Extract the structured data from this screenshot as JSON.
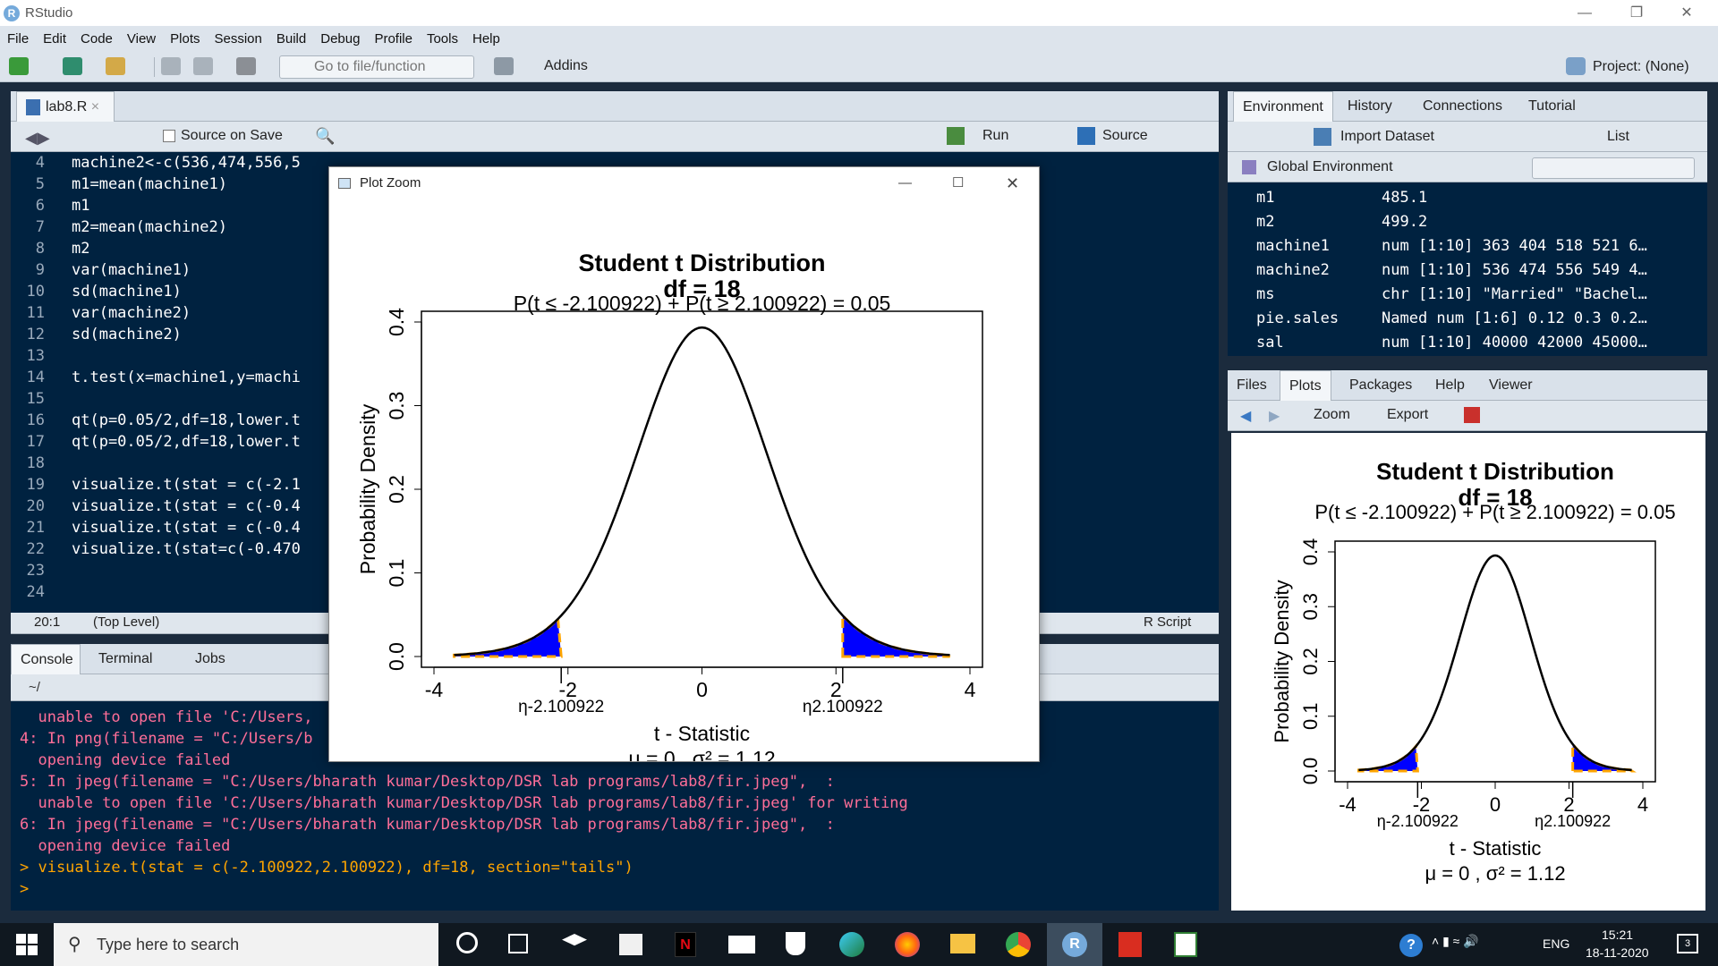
{
  "window": {
    "title": "RStudio"
  },
  "menu": [
    "File",
    "Edit",
    "Code",
    "View",
    "Plots",
    "Session",
    "Build",
    "Debug",
    "Profile",
    "Tools",
    "Help"
  ],
  "toolbar": {
    "goto_placeholder": "Go to file/function",
    "addins": "Addins",
    "project": "Project: (None)"
  },
  "editor": {
    "tab": "lab8.R",
    "source_on_save": "Source on Save",
    "run": "Run",
    "source": "Source",
    "status_pos": "20:1",
    "status_scope": "(Top Level)",
    "status_type": "R Script",
    "lines": [
      {
        "n": "4",
        "t": "machine2<-c(536,474,556,5"
      },
      {
        "n": "5",
        "t": "m1=mean(machine1)"
      },
      {
        "n": "6",
        "t": "m1"
      },
      {
        "n": "7",
        "t": "m2=mean(machine2)"
      },
      {
        "n": "8",
        "t": "m2"
      },
      {
        "n": "9",
        "t": "var(machine1)"
      },
      {
        "n": "10",
        "t": "sd(machine1)"
      },
      {
        "n": "11",
        "t": "var(machine2)"
      },
      {
        "n": "12",
        "t": "sd(machine2)"
      },
      {
        "n": "13",
        "t": ""
      },
      {
        "n": "14",
        "t": "t.test(x=machine1,y=machi"
      },
      {
        "n": "15",
        "t": ""
      },
      {
        "n": "16",
        "t": "qt(p=0.05/2,df=18,lower.t"
      },
      {
        "n": "17",
        "t": "qt(p=0.05/2,df=18,lower.t"
      },
      {
        "n": "18",
        "t": ""
      },
      {
        "n": "19",
        "t": "visualize.t(stat = c(-2.1"
      },
      {
        "n": "20",
        "t": "visualize.t(stat = c(-0.4"
      },
      {
        "n": "21",
        "t": "visualize.t(stat = c(-0.4"
      },
      {
        "n": "22",
        "t": "visualize.t(stat=c(-0.470"
      },
      {
        "n": "23",
        "t": ""
      },
      {
        "n": "24",
        "t": ""
      }
    ]
  },
  "console": {
    "tabs": [
      "Console",
      "Terminal",
      "Jobs"
    ],
    "path": "~/",
    "lines": [
      {
        "t": "  unable to open file 'C:/Users,",
        "c": "hl"
      },
      {
        "t": "4: In png(filename = \"C:/Users/b",
        "c": "hl"
      },
      {
        "t": "  opening device failed",
        "c": "hl"
      },
      {
        "t": "5: In jpeg(filename = \"C:/Users/bharath kumar/Desktop/DSR lab programs/lab8/fir.jpeg\",  :",
        "c": "hl"
      },
      {
        "t": "  unable to open file 'C:/Users/bharath kumar/Desktop/DSR lab programs/lab8/fir.jpeg' for writing",
        "c": "hl"
      },
      {
        "t": "6: In jpeg(filename = \"C:/Users/bharath kumar/Desktop/DSR lab programs/lab8/fir.jpeg\",  :",
        "c": "hl"
      },
      {
        "t": "  opening device failed",
        "c": "hl"
      },
      {
        "t": "> visualize.t(stat = c(-2.100922,2.100922), df=18, section=\"tails\")",
        "c": "stx"
      },
      {
        "t": "> ",
        "c": "stx"
      }
    ]
  },
  "environment": {
    "tabs": [
      "Environment",
      "History",
      "Connections",
      "Tutorial"
    ],
    "import": "Import Dataset",
    "list": "List",
    "scope": "Global Environment",
    "vars": [
      {
        "name": "m1",
        "value": "485.1"
      },
      {
        "name": "m2",
        "value": "499.2"
      },
      {
        "name": "machine1",
        "value": "num [1:10] 363 404 518 521 6…"
      },
      {
        "name": "machine2",
        "value": "num [1:10] 536 474 556 549 4…"
      },
      {
        "name": "ms",
        "value": "chr [1:10] \"Married\" \"Bachel…"
      },
      {
        "name": "pie.sales",
        "value": "Named num [1:6] 0.12 0.3 0.2…"
      },
      {
        "name": "sal",
        "value": "num [1:10] 40000 42000 45000…"
      }
    ]
  },
  "files_pane": {
    "tabs": [
      "Files",
      "Plots",
      "Packages",
      "Help",
      "Viewer"
    ],
    "zoom": "Zoom",
    "export": "Export"
  },
  "zoom_window": {
    "title": "Plot Zoom"
  },
  "chart_data": {
    "type": "area",
    "title": "Student t Distribution",
    "subtitle": "df = 18",
    "formula": "P(t ≤ -2.100922) + P(t ≥ 2.100922) = 0.05",
    "xlabel": "t - Statistic",
    "ylabel": "Probability Density",
    "footer": "μ = 0 , σ² = 1.12",
    "xlim": [
      -4,
      4
    ],
    "ylim": [
      0,
      0.4
    ],
    "xticks": [
      "-4",
      "-2",
      "0",
      "2",
      "4"
    ],
    "yticks": [
      "0.0",
      "0.1",
      "0.2",
      "0.3",
      "0.4"
    ],
    "df": 18,
    "critical": [
      -2.100922,
      2.100922
    ],
    "critical_labels": [
      "η-2.100922",
      "η2.100922"
    ],
    "curve_color": "#000000",
    "tail_fill": "#0000ff",
    "tail_border": "#ffa500"
  },
  "taskbar": {
    "search": "Type here to search",
    "time": "15:21",
    "date": "18-11-2020",
    "lang": "ENG",
    "notif": "3"
  }
}
